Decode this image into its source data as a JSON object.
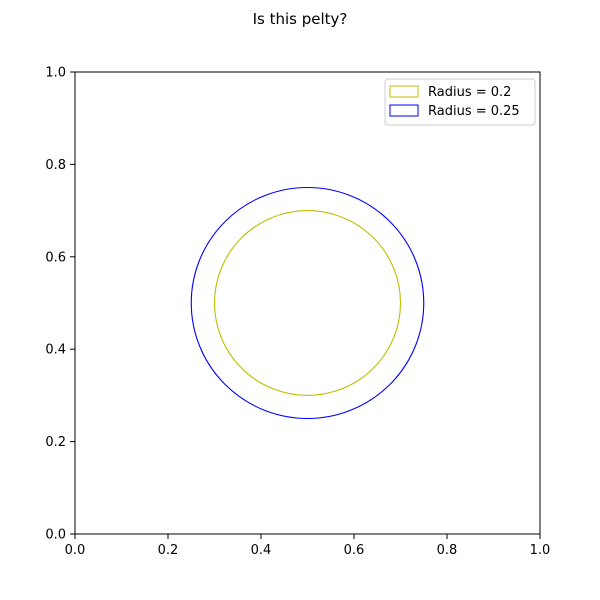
{
  "figure": {
    "title": "Is this pelty?"
  },
  "chart_data": {
    "type": "scatter",
    "title": "Is this pelty?",
    "xlabel": "",
    "ylabel": "",
    "xlim": [
      0.0,
      1.0
    ],
    "ylim": [
      0.0,
      1.0
    ],
    "x_ticks": [
      "0.0",
      "0.2",
      "0.4",
      "0.6",
      "0.8",
      "1.0"
    ],
    "y_ticks": [
      "0.0",
      "0.2",
      "0.4",
      "0.6",
      "0.8",
      "1.0"
    ],
    "grid": false,
    "legend_position": "top-right",
    "series": [
      {
        "name": "Radius = 0.2",
        "shape": "circle",
        "center": [
          0.5,
          0.5
        ],
        "radius": 0.2,
        "color": "#bfbf00",
        "fill": "none"
      },
      {
        "name": "Radius = 0.25",
        "shape": "circle",
        "center": [
          0.5,
          0.5
        ],
        "radius": 0.25,
        "color": "#0000ff",
        "fill": "none"
      }
    ]
  }
}
